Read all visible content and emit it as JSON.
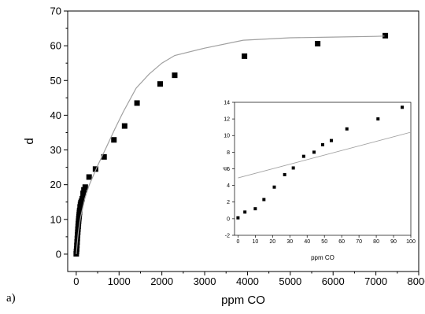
{
  "panel_label": "a)",
  "chart_data": [
    {
      "type": "scatter",
      "title": "",
      "xlabel": "ppm CO",
      "ylabel": "d",
      "xlim": [
        -200,
        8000
      ],
      "ylim": [
        -5,
        70
      ],
      "xticks": [
        0,
        1000,
        2000,
        3000,
        4000,
        5000,
        6000,
        7000,
        8000
      ],
      "yticks": [
        0,
        10,
        20,
        30,
        40,
        50,
        60,
        70
      ],
      "grid": false,
      "legend": "none",
      "series": [
        {
          "marker": "square",
          "color": "#000000",
          "x": [
            0,
            5,
            10,
            15,
            20,
            25,
            30,
            35,
            40,
            45,
            50,
            55,
            60,
            65,
            70,
            75,
            80,
            90,
            100,
            110,
            120,
            140,
            160,
            180,
            210,
            300,
            450,
            650,
            880,
            1130,
            1420,
            1960,
            2300,
            3930,
            5640,
            7220
          ],
          "y": [
            0.1,
            0.8,
            1.5,
            2.5,
            3.5,
            4.5,
            5.5,
            6.3,
            7.2,
            8.0,
            8.8,
            9.5,
            10.2,
            10.8,
            11.4,
            12.0,
            12.6,
            13.6,
            14.3,
            14.8,
            15.2,
            16.0,
            17.5,
            18.5,
            19.3,
            22.2,
            24.5,
            28.0,
            32.9,
            36.9,
            43.5,
            49.0,
            51.5,
            57.0,
            60.6,
            62.9
          ]
        },
        {
          "type": "line",
          "color": "#a0a0a0",
          "x": [
            0,
            20,
            50,
            100,
            200,
            300,
            500,
            700,
            900,
            1100,
            1400,
            1700,
            2000,
            2300,
            3000,
            3900,
            5000,
            6000,
            7000,
            7200
          ],
          "y": [
            0,
            2.8,
            6.5,
            10.5,
            16.0,
            19.8,
            25.5,
            30.7,
            36.0,
            41.0,
            47.8,
            51.8,
            55.0,
            57.2,
            59.3,
            61.6,
            62.3,
            62.5,
            62.7,
            62.8
          ]
        }
      ]
    },
    {
      "type": "scatter",
      "title": "",
      "xlabel": "ppm CO",
      "ylabel": "d",
      "xlim": [
        -2,
        100
      ],
      "ylim": [
        -2,
        14
      ],
      "xticks": [
        0,
        10,
        20,
        30,
        40,
        50,
        60,
        70,
        80,
        90,
        100
      ],
      "yticks": [
        -2,
        0,
        2,
        4,
        6,
        8,
        10,
        12,
        14
      ],
      "grid": false,
      "legend": "none",
      "series": [
        {
          "marker": "square",
          "color": "#000000",
          "x": [
            0,
            4,
            10,
            15,
            21,
            27,
            32,
            38,
            44,
            49,
            54,
            63,
            81,
            95
          ],
          "y": [
            0.1,
            0.8,
            1.2,
            2.3,
            3.8,
            5.3,
            6.1,
            7.5,
            8.0,
            8.9,
            9.4,
            10.8,
            12.0,
            13.4
          ]
        },
        {
          "type": "line",
          "color": "#a0a0a0",
          "x": [
            0,
            100
          ],
          "y": [
            4.9,
            10.4
          ]
        }
      ]
    }
  ]
}
